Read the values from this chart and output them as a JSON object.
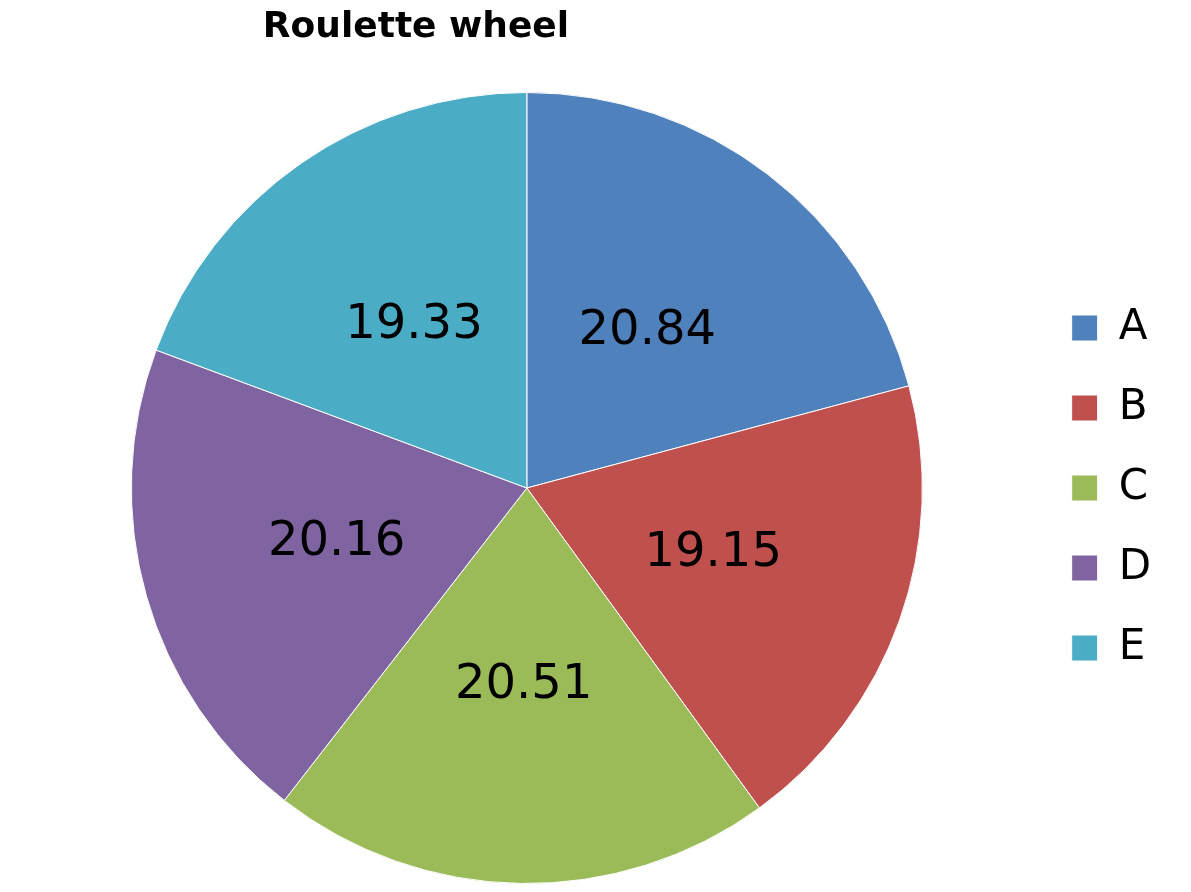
{
  "chart_data": {
    "type": "pie",
    "title": "Roulette wheel",
    "categories": [
      "A",
      "B",
      "C",
      "D",
      "E"
    ],
    "values": [
      20.84,
      19.15,
      20.51,
      20.16,
      19.33
    ],
    "colors": [
      "#4f81bd",
      "#c0504d",
      "#9bbb59",
      "#8064a2",
      "#4bacc6"
    ],
    "data_labels": true,
    "legend": "right"
  }
}
